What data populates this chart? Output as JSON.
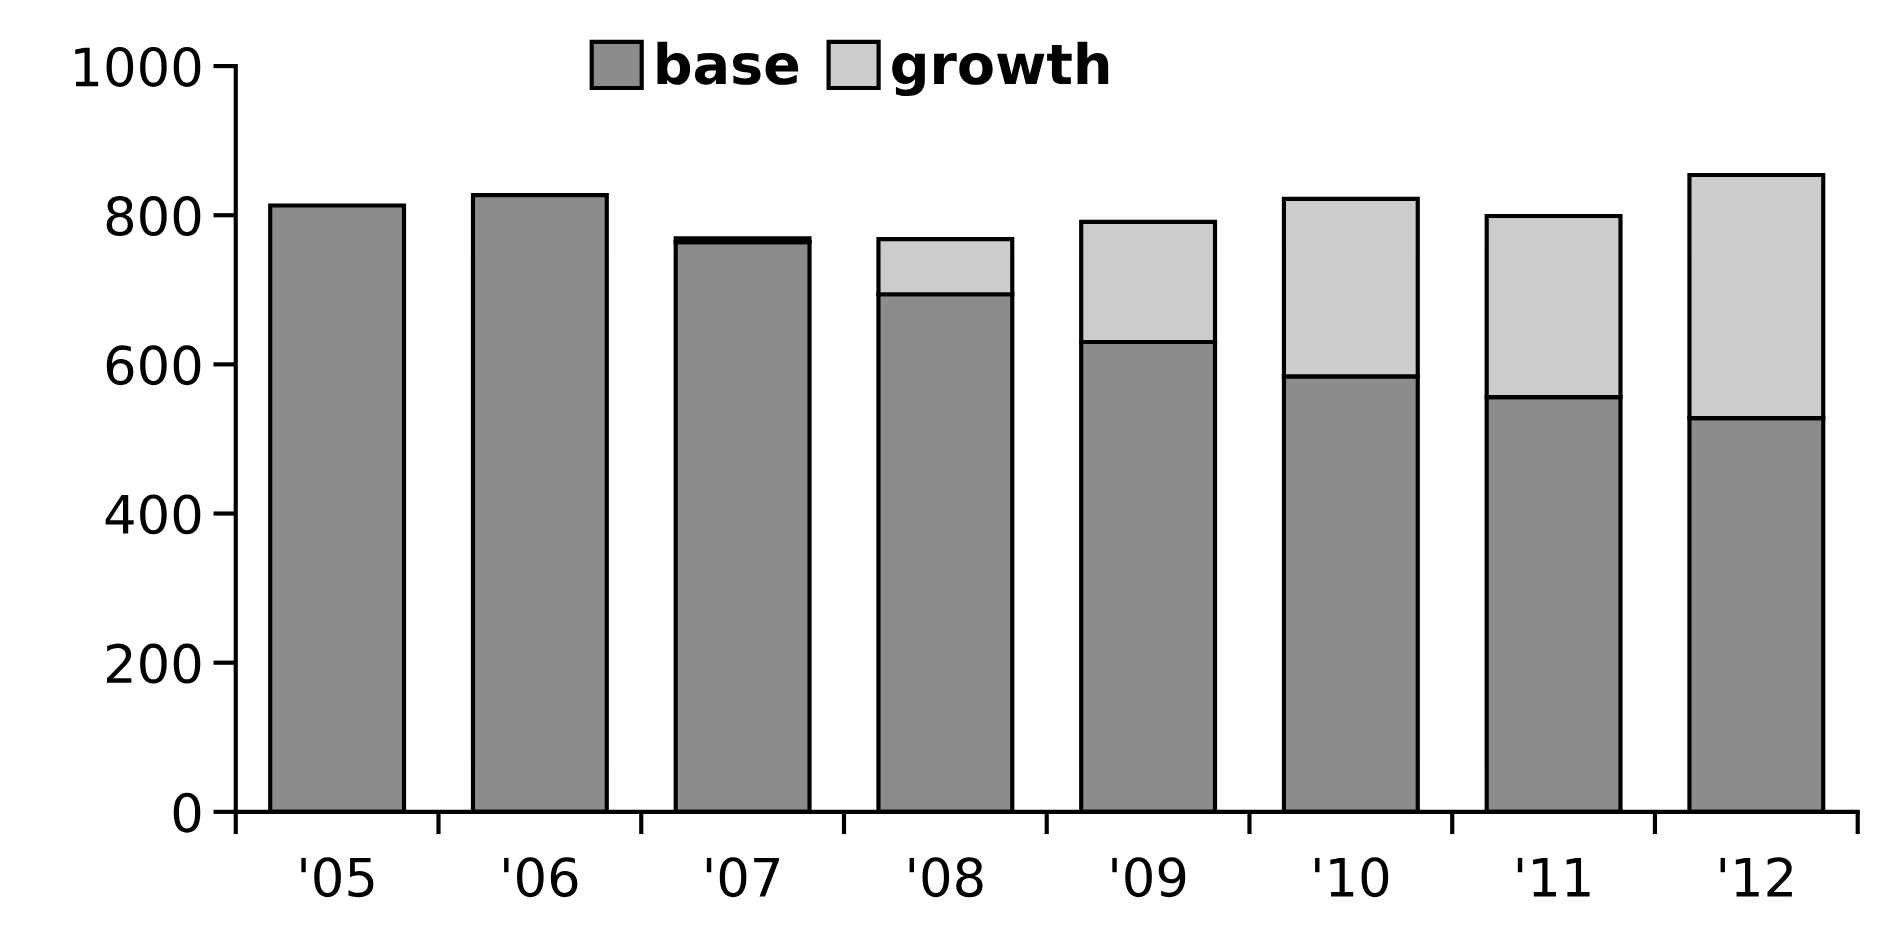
{
  "chart_data": {
    "type": "bar",
    "stacked": true,
    "categories": [
      "'05",
      "'06",
      "'07",
      "'08",
      "'09",
      "'10",
      "'11",
      "'12"
    ],
    "series": [
      {
        "name": "base",
        "color": "#8c8c8c",
        "values": [
          813,
          827,
          764,
          694,
          630,
          584,
          556,
          528
        ]
      },
      {
        "name": "growth",
        "color": "#cccccc",
        "values": [
          null,
          null,
          5,
          74,
          161,
          238,
          243,
          326
        ]
      }
    ],
    "ylim": [
      0,
      1000
    ],
    "yticks": [
      0,
      200,
      400,
      600,
      800,
      1000
    ],
    "grid": false,
    "legend": "top"
  }
}
